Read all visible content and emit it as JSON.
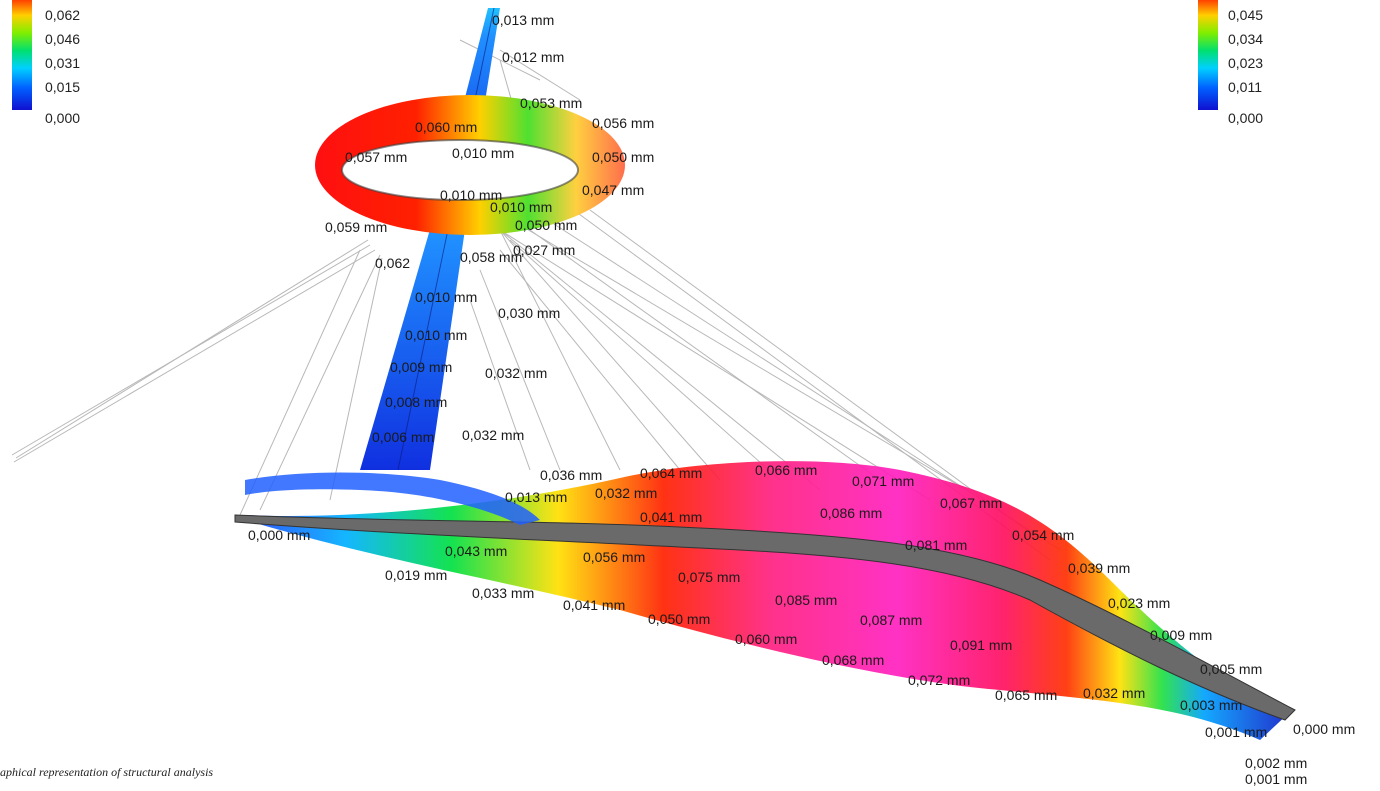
{
  "legend_left": {
    "ticks": [
      "0,062",
      "0,046",
      "0,031",
      "0,015",
      "0,000"
    ],
    "colors": [
      "#ff0000",
      "#ffee00",
      "#22dd22",
      "#00c8ff",
      "#1020ff"
    ]
  },
  "legend_right": {
    "ticks": [
      "0,045",
      "0,034",
      "0,023",
      "0,011",
      "0,000"
    ],
    "colors": [
      "#ff0000",
      "#ffee00",
      "#22dd22",
      "#00c8ff",
      "#1020ff"
    ]
  },
  "labels": {
    "pylon_top": "0,013 mm",
    "pylon_2": "0,012 mm",
    "ring_top": "0,053 mm",
    "ring_left": "0,060 mm",
    "ring_r1": "0,056 mm",
    "ring_r2": "0,050 mm",
    "ring_r3": "0,047 mm",
    "ring_inner1": "0,057 mm",
    "ring_inner2": "0,010 mm",
    "ring_inner3": "0,010 mm",
    "ring_inner4": "0,010 mm",
    "ring_bottom_left": "0,059 mm",
    "ring_bottom": "0,050 mm",
    "p_062": "0,062",
    "p_058": "0,058 mm",
    "p_027": "0,027 mm",
    "p_010a": "0,010 mm",
    "p_030": "0,030 mm",
    "p_010b": "0,010 mm",
    "p_032a": "0,032 mm",
    "p_009": "0,009 mm",
    "p_008": "0,008 mm",
    "p_032b": "0,032 mm",
    "p_006": "0,006 mm",
    "d_036": "0,036 mm",
    "d_064": "0,064 mm",
    "d_066": "0,066 mm",
    "d_071": "0,071 mm",
    "d_067": "0,067 mm",
    "d_013": "0,013 mm",
    "d_032c": "0,032 mm",
    "d_041": "0,041 mm",
    "d_086": "0,086 mm",
    "d_054": "0,054 mm",
    "d_000a": "0,000 mm",
    "d_043": "0,043 mm",
    "d_056": "0,056 mm",
    "d_081": "0,081 mm",
    "d_039": "0,039 mm",
    "d_019": "0,019 mm",
    "d_033": "0,033 mm",
    "d_041b": "0,041 mm",
    "d_050": "0,050 mm",
    "d_075": "0,075 mm",
    "d_085": "0,085 mm",
    "d_087": "0,087 mm",
    "d_023": "0,023 mm",
    "d_060": "0,060 mm",
    "d_091": "0,091 mm",
    "d_009": "0,009 mm",
    "d_068": "0,068 mm",
    "d_072": "0,072 mm",
    "d_065": "0,065 mm",
    "d_032d": "0,032 mm",
    "d_005": "0,005 mm",
    "d_003": "0,003 mm",
    "d_001a": "0,001 mm",
    "d_000b": "0,000 mm",
    "d_002": "0,002 mm",
    "d_001b": "0,001 mm"
  },
  "caption": "aphical representation of structural analysis"
}
